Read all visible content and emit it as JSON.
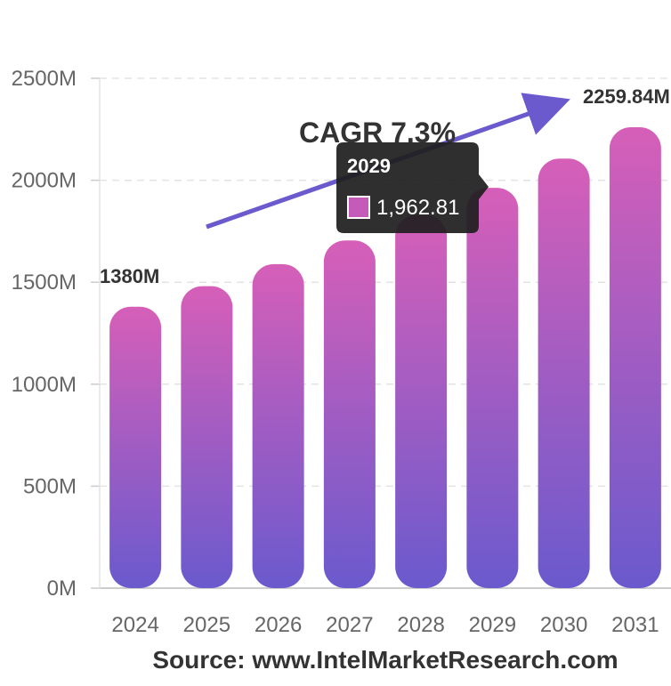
{
  "chart_data": {
    "type": "bar",
    "categories": [
      "2024",
      "2025",
      "2026",
      "2027",
      "2028",
      "2029",
      "2030",
      "2031"
    ],
    "values": [
      1380,
      1480.74,
      1588.84,
      1704.82,
      1829.28,
      1962.81,
      2106.1,
      2259.84
    ],
    "ylim": [
      0,
      2500
    ],
    "y_ticks": [
      "0M",
      "500M",
      "1000M",
      "1500M",
      "2000M",
      "2500M"
    ],
    "grid": true,
    "colors": {
      "bar_top": "#d65fb8",
      "bar_bottom": "#6a5acd",
      "arrow": "#6a5acd"
    },
    "annotations": {
      "start_label": "1380M",
      "end_label": "2259.84M",
      "cagr": "CAGR 7.3%"
    },
    "tooltip": {
      "title": "2029",
      "value": "1,962.81",
      "swatch_color": "#c45bb8"
    }
  },
  "source": "Source: www.IntelMarketResearch.com"
}
